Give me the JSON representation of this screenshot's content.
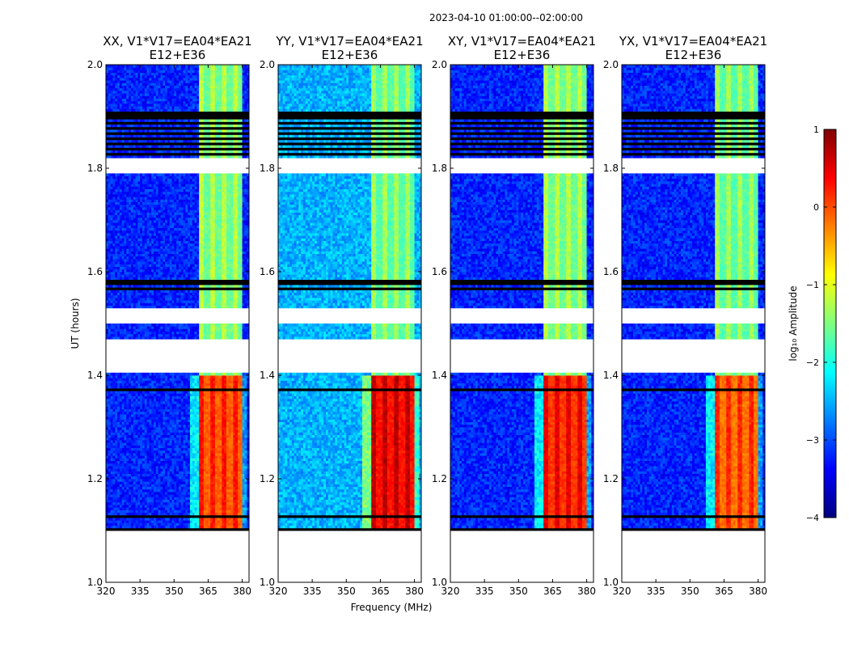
{
  "chart_data": {
    "type": "heatmap",
    "suptitle": "2023-04-10  01:00:00--02:00:00",
    "xlabel": "Frequency (MHz)",
    "ylabel": "UT (hours)",
    "xlim": [
      320,
      383
    ],
    "ylim": [
      1.0,
      2.0
    ],
    "xticks": [
      320,
      335,
      350,
      365,
      380
    ],
    "yticks": [
      1.0,
      1.2,
      1.4,
      1.6,
      1.8,
      2.0
    ],
    "ytick_labels": [
      "1.0",
      "1.2",
      "1.4",
      "1.6",
      "1.8",
      "2.0"
    ],
    "colormap": "jet",
    "colorbar": {
      "label": "log₁₀ Amplitude",
      "range": [
        -4,
        1
      ],
      "ticks": [
        1,
        0,
        -1,
        -2,
        -3,
        -4
      ],
      "tick_labels": [
        "1",
        "0",
        "−1",
        "−2",
        "−3",
        "−4"
      ],
      "colors": [
        "#00007f",
        "#0000ff",
        "#007fff",
        "#00ffff",
        "#7fff7f",
        "#ffff00",
        "#ff7f00",
        "#ff0000",
        "#7f0000"
      ]
    },
    "flagged_rows_UT": [
      [
        1.1,
        1.105
      ],
      [
        1.125,
        1.13
      ],
      [
        1.825,
        1.83
      ],
      [
        1.835,
        1.84
      ],
      [
        1.845,
        1.85
      ],
      [
        1.855,
        1.86
      ],
      [
        1.865,
        1.87
      ],
      [
        1.875,
        1.88
      ],
      [
        1.885,
        1.89
      ],
      [
        1.895,
        1.91
      ],
      [
        1.565,
        1.57
      ],
      [
        1.575,
        1.585
      ],
      [
        1.37,
        1.375
      ]
    ],
    "missing_data_UT": [
      [
        1.0,
        1.1
      ],
      [
        1.405,
        1.47
      ],
      [
        1.5,
        1.53
      ],
      [
        1.79,
        1.82
      ]
    ],
    "band_MHz": [
      361,
      380
    ],
    "panels": [
      {
        "title_line1": "XX, V1*V17=EA04*EA21",
        "title_line2": "E12+E36",
        "background_log_amp": -3.2,
        "band_log_amp_quiet": -1.3,
        "band_log_amp_active": 0.2,
        "active_interval_UT": [
          1.1,
          1.4
        ]
      },
      {
        "title_line1": "YY, V1*V17=EA04*EA21",
        "title_line2": "E12+E36",
        "background_log_amp": -2.5,
        "band_log_amp_quiet": -1.4,
        "band_log_amp_active": 0.6,
        "active_interval_UT": [
          1.1,
          1.4
        ]
      },
      {
        "title_line1": "XY, V1*V17=EA04*EA21",
        "title_line2": "E12+E36",
        "background_log_amp": -3.2,
        "band_log_amp_quiet": -1.3,
        "band_log_amp_active": 0.4,
        "active_interval_UT": [
          1.1,
          1.4
        ]
      },
      {
        "title_line1": "YX, V1*V17=EA04*EA21",
        "title_line2": "E12+E36",
        "background_log_amp": -3.2,
        "band_log_amp_quiet": -1.4,
        "band_log_amp_active": 0.1,
        "active_interval_UT": [
          1.1,
          1.4
        ]
      }
    ]
  }
}
